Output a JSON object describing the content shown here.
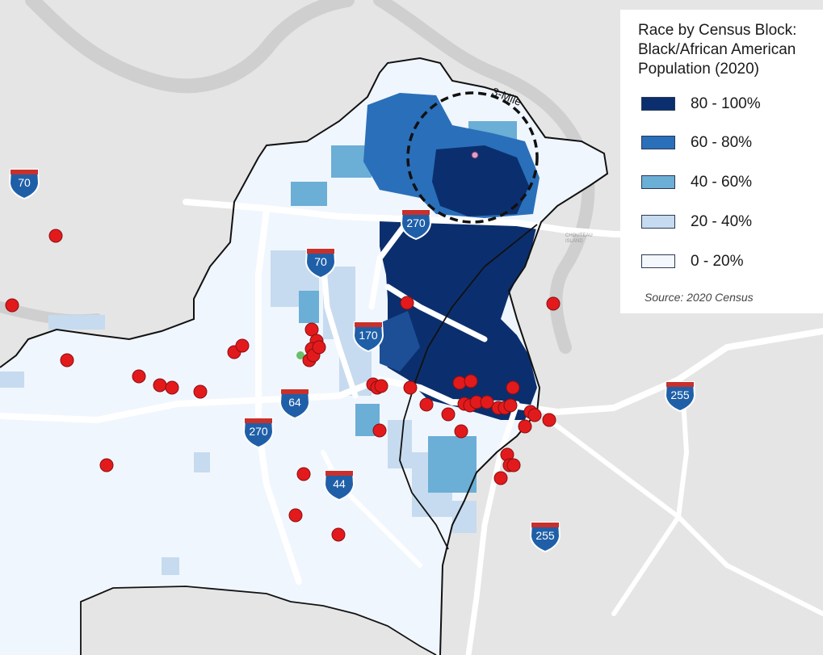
{
  "legend": {
    "title_lines": [
      "Race by Census Block:",
      "Black/African American",
      "Population (2020)"
    ],
    "classes": [
      {
        "label": "80 - 100%",
        "color": "#0b2f6e"
      },
      {
        "label": "60 - 80%",
        "color": "#2a6fba"
      },
      {
        "label": "40 - 60%",
        "color": "#6baed6"
      },
      {
        "label": "20 - 40%",
        "color": "#c6dbef"
      },
      {
        "label": "0 - 20%",
        "color": "#f4f8fd"
      }
    ],
    "source": "Source:  2020 Census"
  },
  "buffer": {
    "label": "3-Mile",
    "radius_miles": 3
  },
  "highways": [
    {
      "number": "70"
    },
    {
      "number": "270"
    },
    {
      "number": "70"
    },
    {
      "number": "170"
    },
    {
      "number": "64"
    },
    {
      "number": "270"
    },
    {
      "number": "44"
    },
    {
      "number": "255"
    },
    {
      "number": "255"
    }
  ],
  "map_labels": {
    "island": "CHOUTEAU ISLAND"
  },
  "colors": {
    "background": "#e5e5e5",
    "county_fill": "#f0f6fd",
    "water": "#c9c9c9",
    "boundary": "#111111",
    "point": "#e31a1c",
    "point_stroke": "#8a0f12",
    "shield_blue": "#1f5fa8",
    "shield_red": "#c9302c"
  }
}
